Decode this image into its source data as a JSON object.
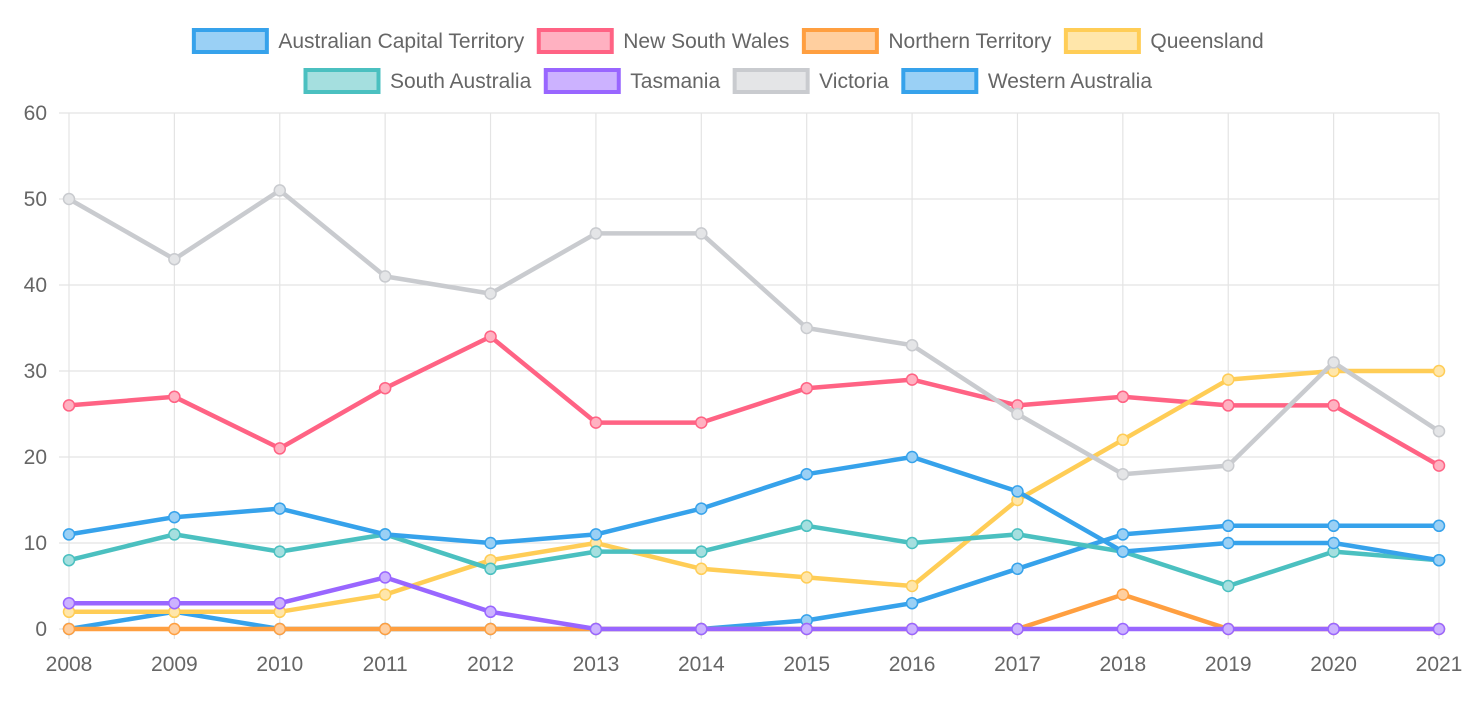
{
  "chart_data": {
    "type": "line",
    "title": "",
    "xlabel": "",
    "ylabel": "",
    "ylim": [
      0,
      60
    ],
    "yticks": [
      0,
      10,
      20,
      30,
      40,
      50,
      60
    ],
    "grid": true,
    "legend_position": "top",
    "categories": [
      "2008",
      "2009",
      "2010",
      "2011",
      "2012",
      "2013",
      "2014",
      "2015",
      "2016",
      "2017",
      "2018",
      "2019",
      "2020",
      "2021"
    ],
    "series": [
      {
        "name": "Australian Capital Territory",
        "color": "#36A2EB",
        "fill": "#9AD0F5",
        "values": [
          0,
          2,
          0,
          0,
          0,
          0,
          0,
          1,
          3,
          7,
          11,
          12,
          12,
          12
        ]
      },
      {
        "name": "New South Wales",
        "color": "#FF6384",
        "fill": "#FFB1C1",
        "values": [
          26,
          27,
          21,
          28,
          34,
          24,
          24,
          28,
          29,
          26,
          27,
          26,
          26,
          19
        ]
      },
      {
        "name": "Northern Territory",
        "color": "#FF9F40",
        "fill": "#FFCF9F",
        "values": [
          0,
          0,
          0,
          0,
          0,
          0,
          0,
          0,
          0,
          0,
          4,
          0,
          0,
          0
        ]
      },
      {
        "name": "Queensland",
        "color": "#FFCD56",
        "fill": "#FFE6AA",
        "values": [
          2,
          2,
          2,
          4,
          8,
          10,
          7,
          6,
          5,
          15,
          22,
          29,
          30,
          30
        ]
      },
      {
        "name": "South Australia",
        "color": "#4BC0C0",
        "fill": "#A5DFDF",
        "values": [
          8,
          11,
          9,
          11,
          7,
          9,
          9,
          12,
          10,
          11,
          9,
          5,
          9,
          8
        ]
      },
      {
        "name": "Tasmania",
        "color": "#9966FF",
        "fill": "#CCB2FF",
        "values": [
          3,
          3,
          3,
          6,
          2,
          0,
          0,
          0,
          0,
          0,
          0,
          0,
          0,
          0
        ]
      },
      {
        "name": "Victoria",
        "color": "#C9CBCF",
        "fill": "#E4E5E7",
        "values": [
          50,
          43,
          51,
          41,
          39,
          46,
          46,
          35,
          33,
          25,
          18,
          19,
          31,
          23
        ]
      },
      {
        "name": "Western Australia",
        "color": "#36A2EB",
        "fill": "#9AD0F5",
        "values": [
          11,
          13,
          14,
          11,
          10,
          11,
          14,
          18,
          20,
          16,
          9,
          10,
          10,
          8
        ]
      }
    ]
  }
}
